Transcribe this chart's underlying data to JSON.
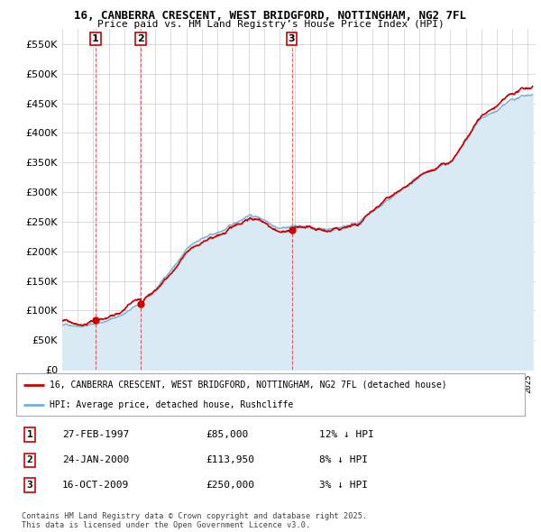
{
  "title_line1": "16, CANBERRA CRESCENT, WEST BRIDGFORD, NOTTINGHAM, NG2 7FL",
  "title_line2": "Price paid vs. HM Land Registry’s House Price Index (HPI)",
  "background_color": "#ffffff",
  "plot_bg_color": "#ffffff",
  "grid_color": "#cccccc",
  "red_color": "#cc0000",
  "blue_color": "#7ab0d4",
  "blue_fill": "#daeaf5",
  "ylim": [
    0,
    575000
  ],
  "yticks": [
    0,
    50000,
    100000,
    150000,
    200000,
    250000,
    300000,
    350000,
    400000,
    450000,
    500000,
    550000
  ],
  "transactions": [
    {
      "date_num": 1997.15,
      "price": 85000,
      "label": "1"
    },
    {
      "date_num": 2000.07,
      "price": 113950,
      "label": "2"
    },
    {
      "date_num": 2009.79,
      "price": 250000,
      "label": "3"
    }
  ],
  "transaction_table": [
    {
      "num": "1",
      "date": "27-FEB-1997",
      "price": "£85,000",
      "pct": "12% ↓ HPI"
    },
    {
      "num": "2",
      "date": "24-JAN-2000",
      "price": "£113,950",
      "pct": "8% ↓ HPI"
    },
    {
      "num": "3",
      "date": "16-OCT-2009",
      "price": "£250,000",
      "pct": "3% ↓ HPI"
    }
  ],
  "legend_line1": "16, CANBERRA CRESCENT, WEST BRIDGFORD, NOTTINGHAM, NG2 7FL (detached house)",
  "legend_line2": "HPI: Average price, detached house, Rushcliffe",
  "footer": "Contains HM Land Registry data © Crown copyright and database right 2025.\nThis data is licensed under the Open Government Licence v3.0.",
  "xmin": 1995.0,
  "xmax": 2025.5,
  "hpi_keypoints": [
    [
      1995.0,
      75000
    ],
    [
      1996.0,
      78000
    ],
    [
      1997.0,
      83000
    ],
    [
      1998.0,
      91000
    ],
    [
      1999.0,
      103000
    ],
    [
      2000.0,
      118000
    ],
    [
      2001.0,
      140000
    ],
    [
      2002.0,
      175000
    ],
    [
      2003.0,
      208000
    ],
    [
      2004.0,
      228000
    ],
    [
      2005.0,
      235000
    ],
    [
      2006.0,
      248000
    ],
    [
      2007.0,
      268000
    ],
    [
      2008.0,
      262000
    ],
    [
      2009.0,
      253000
    ],
    [
      2010.0,
      258000
    ],
    [
      2011.0,
      253000
    ],
    [
      2012.0,
      252000
    ],
    [
      2013.0,
      258000
    ],
    [
      2014.0,
      268000
    ],
    [
      2015.0,
      285000
    ],
    [
      2016.0,
      303000
    ],
    [
      2017.0,
      322000
    ],
    [
      2018.0,
      335000
    ],
    [
      2019.0,
      345000
    ],
    [
      2020.0,
      358000
    ],
    [
      2021.0,
      390000
    ],
    [
      2022.0,
      430000
    ],
    [
      2023.0,
      440000
    ],
    [
      2024.0,
      455000
    ],
    [
      2025.3,
      465000
    ]
  ]
}
